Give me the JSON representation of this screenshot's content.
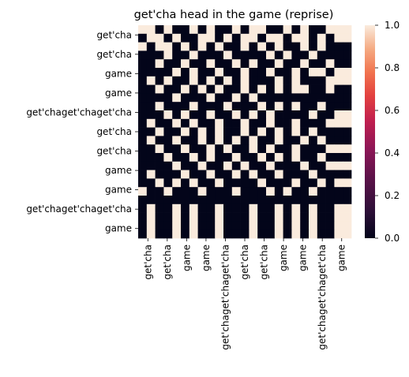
{
  "chart_data": {
    "type": "heatmap",
    "title": "get'cha head in the game (reprise)",
    "xlabel": "",
    "ylabel": "",
    "x_tick_labels": [
      "get'cha",
      "get'cha",
      "game",
      "game",
      "get'chaget'chaget'cha",
      "get'cha",
      "get'cha",
      "game",
      "game",
      "get'chaget'chaget'cha",
      "game"
    ],
    "y_tick_labels": [
      "get'cha",
      "get'cha",
      "game",
      "game",
      "get'chaget'chaget'cha",
      "get'cha",
      "get'cha",
      "game",
      "game",
      "get'chaget'chaget'cha",
      "game"
    ],
    "grid": false,
    "matrix": [
      [
        1,
        1,
        0,
        1,
        0,
        0,
        1,
        0,
        1,
        0,
        0,
        1,
        0,
        1,
        1,
        0,
        0,
        1,
        0,
        1,
        0,
        0,
        1,
        1,
        1
      ],
      [
        0,
        1,
        1,
        0,
        1,
        0,
        0,
        1,
        1,
        0,
        1,
        0,
        1,
        1,
        0,
        1,
        1,
        0,
        1,
        1,
        0,
        1,
        0,
        1,
        1
      ],
      [
        1,
        0,
        1,
        1,
        0,
        1,
        0,
        1,
        0,
        1,
        0,
        0,
        1,
        0,
        1,
        0,
        1,
        0,
        0,
        1,
        0,
        1,
        0,
        0,
        0
      ],
      [
        0,
        0,
        0,
        1,
        0,
        0,
        1,
        0,
        0,
        0,
        1,
        0,
        0,
        0,
        0,
        1,
        0,
        1,
        0,
        0,
        1,
        0,
        0,
        0,
        0
      ],
      [
        0,
        0,
        1,
        0,
        0,
        1,
        0,
        0,
        1,
        0,
        0,
        1,
        0,
        1,
        0,
        0,
        1,
        0,
        0,
        1,
        0,
        0,
        1,
        0,
        0
      ],
      [
        0,
        0,
        0,
        0,
        1,
        0,
        1,
        0,
        0,
        1,
        0,
        0,
        1,
        0,
        0,
        1,
        0,
        0,
        1,
        0,
        1,
        1,
        0,
        1,
        1
      ],
      [
        0,
        1,
        0,
        1,
        0,
        0,
        1,
        0,
        1,
        0,
        1,
        0,
        1,
        0,
        0,
        0,
        1,
        0,
        1,
        0,
        0,
        0,
        1,
        1,
        1
      ],
      [
        0,
        0,
        1,
        0,
        0,
        1,
        0,
        1,
        0,
        1,
        0,
        0,
        1,
        0,
        1,
        0,
        1,
        0,
        1,
        1,
        0,
        0,
        1,
        0,
        0
      ],
      [
        0,
        0,
        0,
        0,
        1,
        0,
        0,
        0,
        1,
        0,
        0,
        1,
        0,
        1,
        0,
        0,
        0,
        0,
        0,
        0,
        0,
        0,
        0,
        0,
        0
      ],
      [
        0,
        0,
        1,
        0,
        0,
        0,
        1,
        0,
        0,
        0,
        1,
        0,
        0,
        0,
        1,
        0,
        1,
        0,
        1,
        0,
        0,
        1,
        0,
        0,
        0
      ],
      [
        0,
        0,
        0,
        1,
        0,
        1,
        0,
        0,
        1,
        0,
        0,
        1,
        0,
        1,
        0,
        1,
        0,
        0,
        0,
        0,
        1,
        0,
        0,
        1,
        1
      ],
      [
        0,
        1,
        0,
        0,
        1,
        0,
        1,
        0,
        0,
        1,
        0,
        0,
        1,
        0,
        0,
        1,
        0,
        0,
        1,
        0,
        0,
        0,
        1,
        1,
        1
      ],
      [
        0,
        0,
        1,
        0,
        0,
        1,
        0,
        1,
        0,
        1,
        0,
        0,
        1,
        0,
        1,
        0,
        1,
        0,
        1,
        0,
        1,
        0,
        0,
        0,
        0
      ],
      [
        0,
        1,
        0,
        0,
        1,
        0,
        0,
        1,
        0,
        1,
        0,
        1,
        0,
        1,
        0,
        0,
        1,
        0,
        0,
        1,
        0,
        1,
        0,
        0,
        0
      ],
      [
        0,
        0,
        1,
        0,
        0,
        1,
        0,
        0,
        1,
        0,
        1,
        0,
        0,
        1,
        0,
        1,
        0,
        0,
        1,
        0,
        0,
        0,
        1,
        1,
        1
      ],
      [
        0,
        0,
        0,
        1,
        0,
        0,
        1,
        0,
        1,
        0,
        0,
        1,
        0,
        0,
        1,
        0,
        1,
        0,
        1,
        0,
        0,
        1,
        0,
        0,
        0
      ],
      [
        0,
        0,
        0,
        0,
        1,
        0,
        0,
        1,
        0,
        0,
        1,
        0,
        1,
        0,
        0,
        1,
        0,
        0,
        0,
        1,
        0,
        0,
        1,
        1,
        1
      ],
      [
        0,
        1,
        0,
        0,
        0,
        1,
        0,
        0,
        1,
        0,
        0,
        1,
        0,
        1,
        0,
        0,
        1,
        0,
        0,
        0,
        1,
        0,
        0,
        0,
        0
      ],
      [
        0,
        0,
        1,
        0,
        1,
        0,
        1,
        0,
        0,
        1,
        0,
        0,
        0,
        0,
        1,
        0,
        0,
        0,
        1,
        0,
        0,
        1,
        0,
        1,
        1
      ],
      [
        1,
        0,
        0,
        1,
        0,
        0,
        0,
        1,
        0,
        0,
        0,
        1,
        0,
        0,
        0,
        1,
        0,
        1,
        0,
        0,
        1,
        0,
        0,
        0,
        0
      ],
      [
        0,
        0,
        0,
        0,
        0,
        0,
        0,
        0,
        0,
        0,
        0,
        0,
        0,
        0,
        0,
        0,
        0,
        0,
        0,
        0,
        0,
        0,
        0,
        0,
        0
      ],
      [
        0,
        1,
        0,
        0,
        1,
        0,
        1,
        0,
        0,
        1,
        0,
        0,
        0,
        1,
        0,
        0,
        1,
        0,
        1,
        0,
        1,
        0,
        0,
        1,
        1
      ],
      [
        0,
        1,
        0,
        0,
        1,
        0,
        1,
        0,
        0,
        1,
        0,
        0,
        0,
        1,
        0,
        0,
        1,
        0,
        1,
        0,
        1,
        0,
        0,
        1,
        1
      ],
      [
        0,
        1,
        0,
        0,
        1,
        0,
        1,
        0,
        0,
        1,
        0,
        0,
        0,
        1,
        0,
        0,
        1,
        0,
        1,
        0,
        1,
        0,
        0,
        1,
        1
      ],
      [
        0,
        1,
        0,
        0,
        1,
        0,
        1,
        0,
        0,
        1,
        0,
        0,
        0,
        1,
        0,
        0,
        1,
        0,
        1,
        0,
        1,
        0,
        0,
        1,
        1
      ]
    ],
    "colorbar": {
      "range": [
        0.0,
        1.0
      ],
      "ticks": [
        "0.0",
        "0.2",
        "0.4",
        "0.6",
        "0.8",
        "1.0"
      ],
      "colors": {
        "low": "#03051a",
        "mid": "#a11a5b",
        "high": "#faebdd"
      }
    }
  }
}
